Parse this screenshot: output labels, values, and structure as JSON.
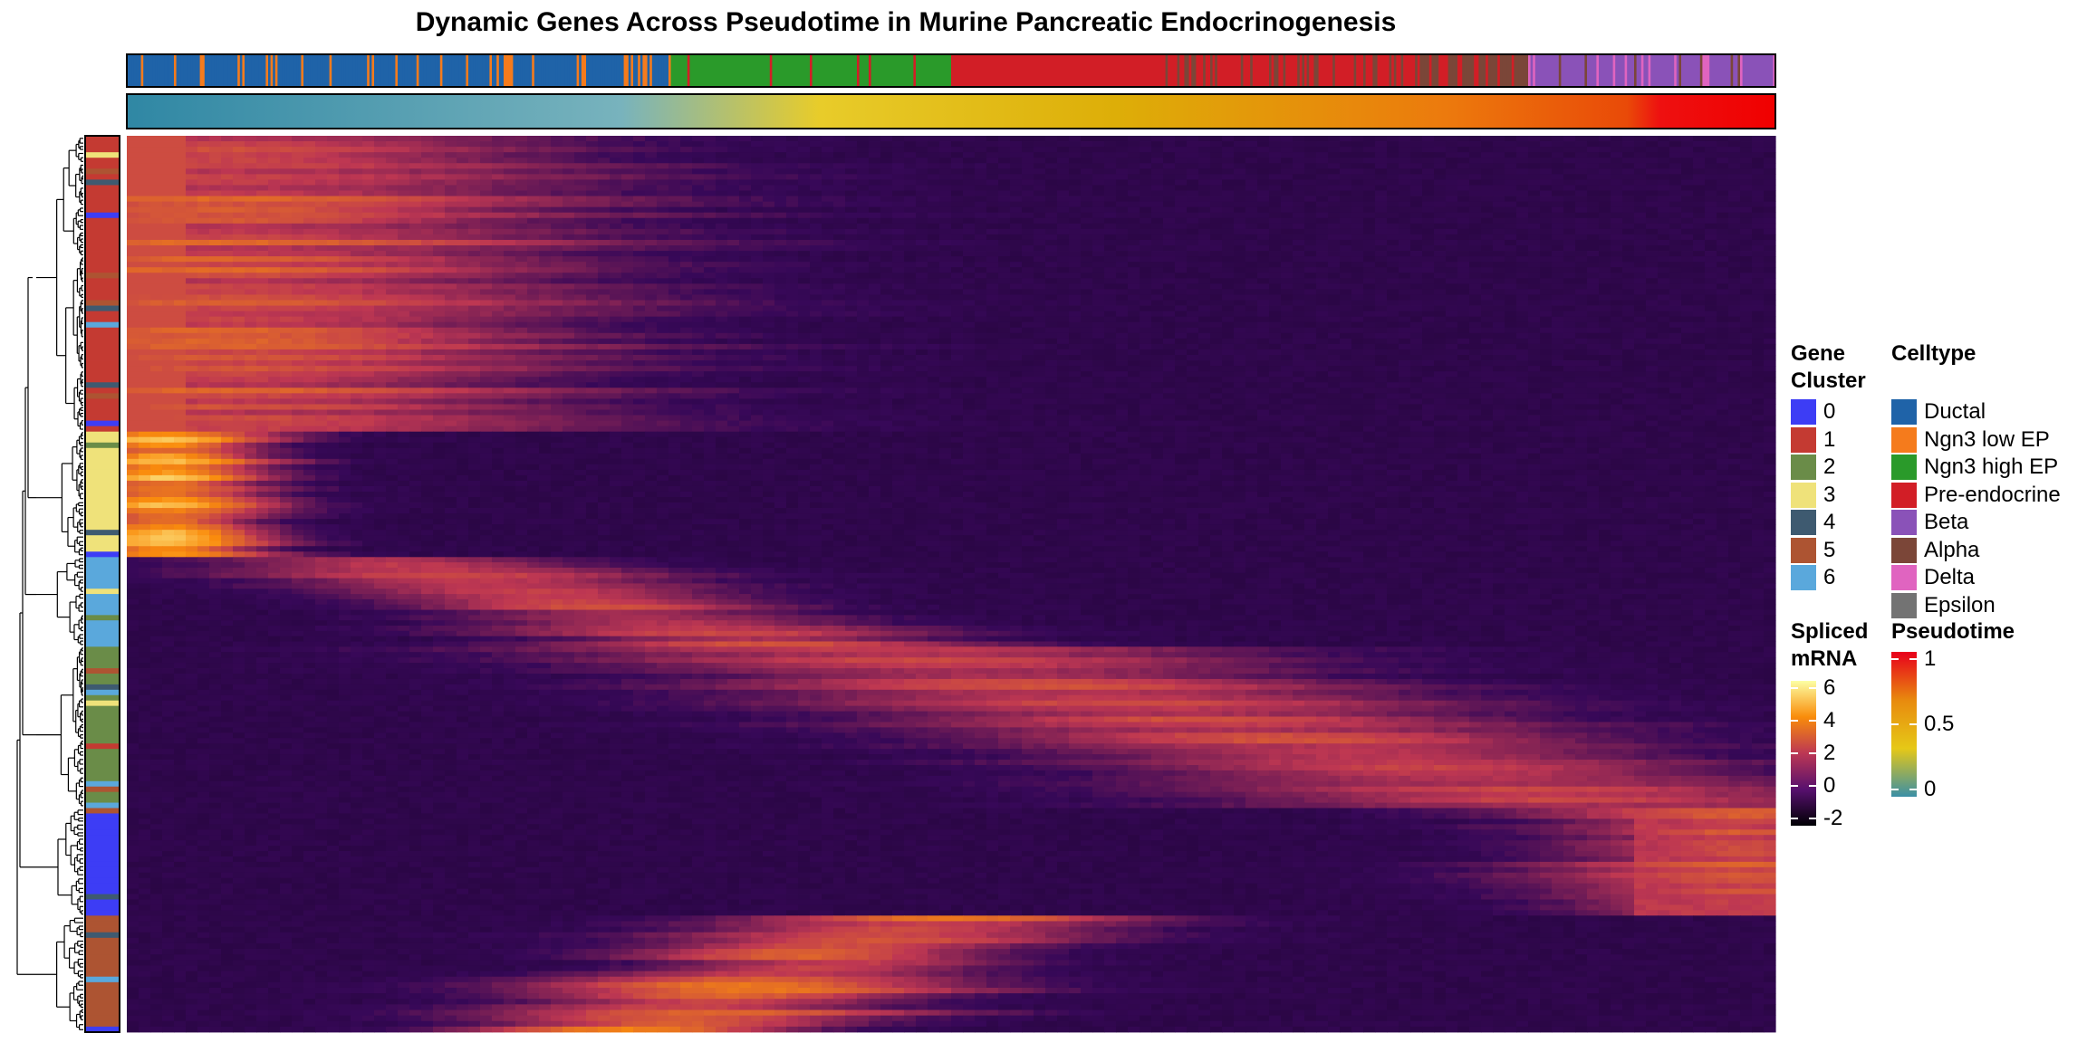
{
  "chart_data": {
    "type": "heatmap",
    "title": "Dynamic Genes Across Pseudotime in Murine Pancreatic Endocrinogenesis",
    "x_axis": "pseudotime-ordered cells",
    "value_range": [
      -2,
      6
    ],
    "pseudotime_range": [
      0,
      1
    ],
    "celltype_order": [
      {
        "celltype": "Ductal",
        "from": 0.0,
        "to": 0.33
      },
      {
        "celltype": "Ngn3 high EP",
        "from": 0.33,
        "to": 0.5
      },
      {
        "celltype": "Pre-endocrine",
        "from": 0.5,
        "to": 0.78
      },
      {
        "celltype": "Alpha",
        "from": 0.78,
        "to": 0.85
      },
      {
        "celltype": "Beta",
        "from": 0.85,
        "to": 1.0
      }
    ],
    "row_blocks": [
      {
        "cluster": 1,
        "rows": 0.33,
        "peak": 0.05,
        "width": 0.22,
        "max": 3.5
      },
      {
        "cluster": 3,
        "rows": 0.14,
        "peak": 0.02,
        "width": 0.06,
        "max": 5.5
      },
      {
        "cluster": 6,
        "rows": 0.1,
        "peak": 0.3,
        "width": 0.12,
        "max": 3.0
      },
      {
        "cluster": 2,
        "rows": 0.18,
        "peak": 0.7,
        "width": 0.2,
        "max": 3.0
      },
      {
        "cluster": 0,
        "rows": 0.12,
        "peak": 0.98,
        "width": 0.12,
        "max": 3.5
      },
      {
        "cluster": 5,
        "rows": 0.13,
        "peak": 0.42,
        "width": 0.12,
        "max": 4.0
      }
    ]
  },
  "legends": {
    "gene_cluster": {
      "title_lines": [
        "Gene",
        "Cluster"
      ],
      "items": [
        {
          "label": "0",
          "color": "#3d3df5"
        },
        {
          "label": "1",
          "color": "#c43a32"
        },
        {
          "label": "2",
          "color": "#6a8c48"
        },
        {
          "label": "3",
          "color": "#efe27a"
        },
        {
          "label": "4",
          "color": "#3e5a70"
        },
        {
          "label": "5",
          "color": "#ad5432"
        },
        {
          "label": "6",
          "color": "#5aa8dc"
        }
      ]
    },
    "celltype": {
      "title": "Celltype",
      "items": [
        {
          "label": "Ductal",
          "color": "#1f63a8"
        },
        {
          "label": "Ngn3 low EP",
          "color": "#f57b1c"
        },
        {
          "label": "Ngn3 high EP",
          "color": "#2a9a2a"
        },
        {
          "label": "Pre-endocrine",
          "color": "#d21e26"
        },
        {
          "label": "Beta",
          "color": "#8a52b8"
        },
        {
          "label": "Alpha",
          "color": "#7b4638"
        },
        {
          "label": "Delta",
          "color": "#e064c0"
        },
        {
          "label": "Epsilon",
          "color": "#737373"
        }
      ]
    },
    "spliced": {
      "title_lines": [
        "Spliced",
        "mRNA"
      ],
      "ticks": [
        "6",
        "4",
        "2",
        "0",
        "-2"
      ],
      "stops": [
        "#fcffa4",
        "#f98c0a",
        "#bc3754",
        "#57106e",
        "#000004"
      ]
    },
    "pseudotime": {
      "title": "Pseudotime",
      "ticks": [
        "1",
        "0.5",
        "0"
      ],
      "stops": [
        "#e8001c",
        "#e88a0e",
        "#e6c817",
        "#3a8fa6"
      ]
    }
  }
}
